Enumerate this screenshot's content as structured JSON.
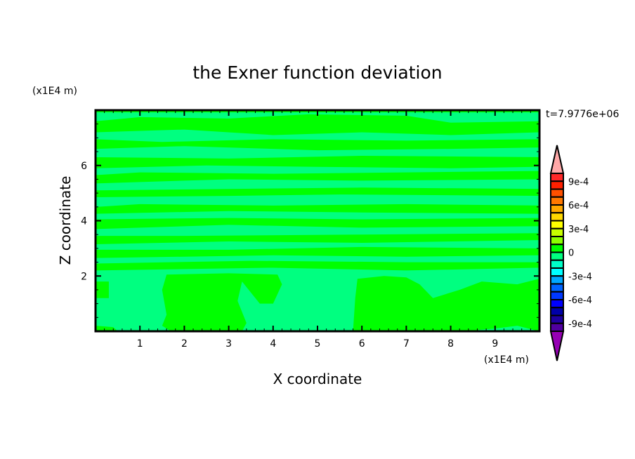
{
  "chart_data": {
    "type": "heatmap",
    "title": "the Exner function deviation",
    "xlabel": "X coordinate",
    "ylabel": "Z coordinate",
    "x_unit": "(x1E4 m)",
    "y_unit": "(x1E4 m)",
    "annotation": "t=7.9776e+06",
    "xlim": [
      0,
      10
    ],
    "ylim": [
      0,
      8
    ],
    "x_ticks": [
      1,
      2,
      3,
      4,
      5,
      6,
      7,
      8,
      9
    ],
    "y_ticks": [
      2,
      4,
      6
    ],
    "colorbar": {
      "levels_min": -0.001,
      "levels_max": 0.001,
      "level_step": 0.0001,
      "tick_labels": [
        {
          "value": 0.0009,
          "label": "9e-4"
        },
        {
          "value": 0.0006,
          "label": "6e-4"
        },
        {
          "value": 0.0003,
          "label": "3e-4"
        },
        {
          "value": 0,
          "label": "0"
        },
        {
          "value": -0.0003,
          "label": "-3e-4"
        },
        {
          "value": -0.0006,
          "label": "-6e-4"
        },
        {
          "value": -0.0009,
          "label": "-9e-4"
        }
      ],
      "colors_high_to_low": [
        "#ff2828",
        "#ff2000",
        "#ff5000",
        "#ff7800",
        "#ffa800",
        "#ffd800",
        "#ffff00",
        "#c8ff00",
        "#8cff00",
        "#00ff00",
        "#00ff80",
        "#00ffc8",
        "#00ffff",
        "#00a8ff",
        "#0064ff",
        "#0038ff",
        "#0000ff",
        "#0000a8",
        "#1e00a0",
        "#5000a0"
      ],
      "over_color": "#ffa8a8",
      "under_color": "#9600b4"
    },
    "field": {
      "background_range": [
        -0.0001,
        0
      ],
      "background_color": "#00ff80",
      "positive_range": [
        0,
        0.0001
      ],
      "positive_color": "#00ff00",
      "positive_regions": [
        [
          [
            0,
            7.92
          ],
          [
            10,
            7.92
          ],
          [
            10,
            8
          ],
          [
            0,
            8
          ]
        ],
        [
          [
            0,
            7.2
          ],
          [
            2,
            7.3
          ],
          [
            4,
            7.1
          ],
          [
            6,
            7.2
          ],
          [
            8,
            7.1
          ],
          [
            10,
            7.2
          ],
          [
            10,
            7.6
          ],
          [
            8,
            7.55
          ],
          [
            7,
            7.8
          ],
          [
            4.8,
            7.85
          ],
          [
            3,
            7.7
          ],
          [
            1,
            7.75
          ],
          [
            0,
            7.6
          ]
        ],
        [
          [
            0,
            6.6
          ],
          [
            2,
            6.7
          ],
          [
            5,
            6.55
          ],
          [
            8,
            6.6
          ],
          [
            10,
            6.65
          ],
          [
            10,
            6.95
          ],
          [
            7,
            6.9
          ],
          [
            4,
            6.95
          ],
          [
            1.5,
            6.85
          ],
          [
            0,
            6.95
          ]
        ],
        [
          [
            0,
            5.9
          ],
          [
            2.5,
            6.0
          ],
          [
            5,
            5.95
          ],
          [
            8,
            5.9
          ],
          [
            10,
            5.95
          ],
          [
            10,
            6.3
          ],
          [
            6,
            6.35
          ],
          [
            3,
            6.25
          ],
          [
            0,
            6.3
          ]
        ],
        [
          [
            0,
            5.35
          ],
          [
            3,
            5.5
          ],
          [
            6,
            5.45
          ],
          [
            10,
            5.5
          ],
          [
            10,
            5.8
          ],
          [
            7,
            5.75
          ],
          [
            4,
            5.7
          ],
          [
            1,
            5.75
          ],
          [
            0,
            5.65
          ]
        ],
        [
          [
            0,
            4.85
          ],
          [
            3,
            4.9
          ],
          [
            5.5,
            4.95
          ],
          [
            10,
            4.9
          ],
          [
            10,
            5.15
          ],
          [
            6,
            5.2
          ],
          [
            3,
            5.15
          ],
          [
            0,
            5.1
          ]
        ],
        [
          [
            0,
            4.25
          ],
          [
            3,
            4.35
          ],
          [
            6,
            4.3
          ],
          [
            10,
            4.25
          ],
          [
            10,
            4.55
          ],
          [
            7,
            4.6
          ],
          [
            4,
            4.55
          ],
          [
            1,
            4.6
          ],
          [
            0,
            4.5
          ]
        ],
        [
          [
            0,
            3.7
          ],
          [
            3,
            3.85
          ],
          [
            6,
            3.75
          ],
          [
            10,
            3.8
          ],
          [
            10,
            4.1
          ],
          [
            6,
            4.05
          ],
          [
            3,
            4.1
          ],
          [
            0,
            4.05
          ]
        ],
        [
          [
            0,
            3.15
          ],
          [
            3,
            3.25
          ],
          [
            6,
            3.2
          ],
          [
            10,
            3.3
          ],
          [
            10,
            3.55
          ],
          [
            6,
            3.5
          ],
          [
            2,
            3.45
          ],
          [
            0,
            3.45
          ]
        ],
        [
          [
            0,
            2.65
          ],
          [
            4,
            2.75
          ],
          [
            7,
            2.7
          ],
          [
            10,
            2.75
          ],
          [
            10,
            3.0
          ],
          [
            6,
            3.05
          ],
          [
            3,
            2.95
          ],
          [
            0,
            2.95
          ]
        ],
        [
          [
            0,
            2.2
          ],
          [
            2,
            2.25
          ],
          [
            4,
            2.3
          ],
          [
            7,
            2.2
          ],
          [
            10,
            2.3
          ],
          [
            10,
            2.5
          ],
          [
            7,
            2.5
          ],
          [
            3.5,
            2.55
          ],
          [
            0,
            2.45
          ]
        ],
        [
          [
            1.5,
            0.2
          ],
          [
            1.6,
            0.6
          ],
          [
            1.5,
            1.5
          ],
          [
            1.6,
            2.05
          ],
          [
            3.0,
            2.1
          ],
          [
            4.1,
            2.05
          ],
          [
            4.2,
            1.7
          ],
          [
            4.0,
            1.0
          ],
          [
            3.7,
            1.0
          ],
          [
            3.3,
            1.8
          ],
          [
            3.2,
            1.1
          ],
          [
            3.4,
            0.3
          ],
          [
            3.3,
            0
          ],
          [
            1.7,
            0
          ]
        ],
        [
          [
            5.8,
            0
          ],
          [
            5.85,
            1.2
          ],
          [
            5.9,
            1.9
          ],
          [
            6.5,
            2.0
          ],
          [
            7.0,
            1.95
          ],
          [
            7.3,
            1.7
          ],
          [
            7.6,
            1.2
          ],
          [
            8.2,
            1.5
          ],
          [
            8.7,
            1.8
          ],
          [
            9.5,
            1.7
          ],
          [
            10,
            1.9
          ],
          [
            10,
            1.3
          ],
          [
            9.5,
            1.25
          ],
          [
            9.0,
            0.8
          ],
          [
            8.8,
            0.4
          ],
          [
            8.6,
            0
          ],
          [
            8.2,
            0
          ]
        ],
        [
          [
            8.2,
            0
          ],
          [
            8.6,
            0
          ],
          [
            8.8,
            0.5
          ],
          [
            9.0,
            0.9
          ],
          [
            9.5,
            1.3
          ],
          [
            10,
            1.35
          ],
          [
            10,
            0
          ],
          [
            9.5,
            0.2
          ],
          [
            9.0,
            0.1
          ]
        ],
        [
          [
            0,
            1.2
          ],
          [
            0.3,
            1.2
          ],
          [
            0.3,
            1.8
          ],
          [
            0,
            1.8
          ]
        ],
        [
          [
            0,
            0
          ],
          [
            0.5,
            0
          ],
          [
            0.4,
            0.15
          ],
          [
            0,
            0.2
          ]
        ]
      ]
    }
  }
}
